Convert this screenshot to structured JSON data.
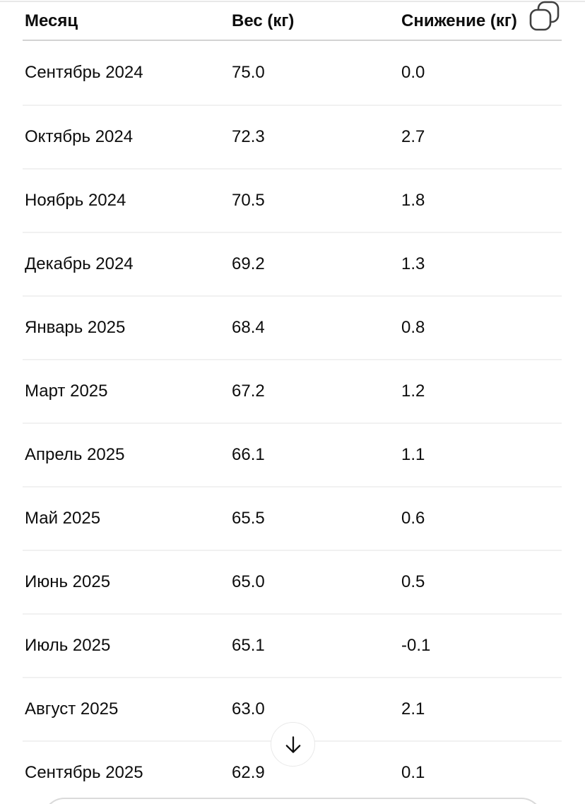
{
  "table": {
    "columns": [
      "Месяц",
      "Вес (кг)",
      "Снижение (кг)"
    ],
    "rows": [
      {
        "month": "Сентябрь 2024",
        "weight": "75.0",
        "loss": "0.0"
      },
      {
        "month": "Октябрь 2024",
        "weight": "72.3",
        "loss": "2.7"
      },
      {
        "month": "Ноябрь 2024",
        "weight": "70.5",
        "loss": "1.8"
      },
      {
        "month": "Декабрь 2024",
        "weight": "69.2",
        "loss": "1.3"
      },
      {
        "month": "Январь 2025",
        "weight": "68.4",
        "loss": "0.8"
      },
      {
        "month": "Март 2025",
        "weight": "67.2",
        "loss": "1.2"
      },
      {
        "month": "Апрель 2025",
        "weight": "66.1",
        "loss": "1.1"
      },
      {
        "month": "Май 2025",
        "weight": "65.5",
        "loss": "0.6"
      },
      {
        "month": "Июнь 2025",
        "weight": "65.0",
        "loss": "0.5"
      },
      {
        "month": "Июль 2025",
        "weight": "65.1",
        "loss": "-0.1"
      },
      {
        "month": "Август 2025",
        "weight": "63.0",
        "loss": "2.1"
      },
      {
        "month": "Сентябрь 2025",
        "weight": "62.9",
        "loss": "0.1"
      }
    ]
  },
  "icons": {
    "copy": "copy-icon",
    "scroll_down": "arrow-down-icon"
  },
  "colors": {
    "text": "#0d0d0d",
    "header_divider": "#d3d3d3",
    "row_divider": "#f1f1f1",
    "top_hairline": "#e8e8e8",
    "icon_stroke": "#404040",
    "scroll_button_border": "#e9e9e9",
    "composer_border": "#dadada",
    "background": "#ffffff"
  }
}
